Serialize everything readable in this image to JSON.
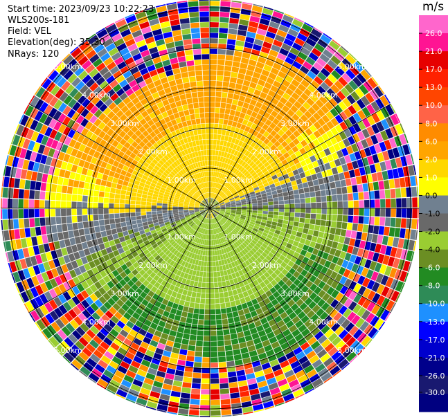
{
  "header": {
    "start_time": "Start time: 2023/09/23 10:22:23",
    "instrument": "WLS200s-181",
    "field": "Field: VEL",
    "elevation": "Elevation(deg): 35.30",
    "nrays": "NRays: 120"
  },
  "range_labels": [
    "1.00km",
    "2.00km",
    "3.00km",
    "4.00km",
    "5.00km"
  ],
  "colorbar": {
    "unit": "m/s",
    "tick_labels": [
      "26.0",
      "21.0",
      "17.0",
      "13.0",
      "10.0",
      "8.0",
      "6.0",
      "2.0",
      "1.0",
      "0.0",
      "-1.0",
      "-2.0",
      "-4.0",
      "-6.0",
      "-8.0",
      "-10.0",
      "-13.0",
      "-17.0",
      "-21.0",
      "-26.0",
      "-30.0"
    ],
    "colors": [
      "#ff66cc",
      "#ff1493",
      "#e60000",
      "#ff2200",
      "#ff4500",
      "#ff6347",
      "#ff8c00",
      "#ffa500",
      "#ffd700",
      "#ffff00",
      "#708090",
      "#696969",
      "#9acd32",
      "#6b8e23",
      "#228b22",
      "#2e8b57",
      "#1e90ff",
      "#0000ff",
      "#0000cd",
      "#00008b",
      "#191970",
      "#000080"
    ]
  }
}
